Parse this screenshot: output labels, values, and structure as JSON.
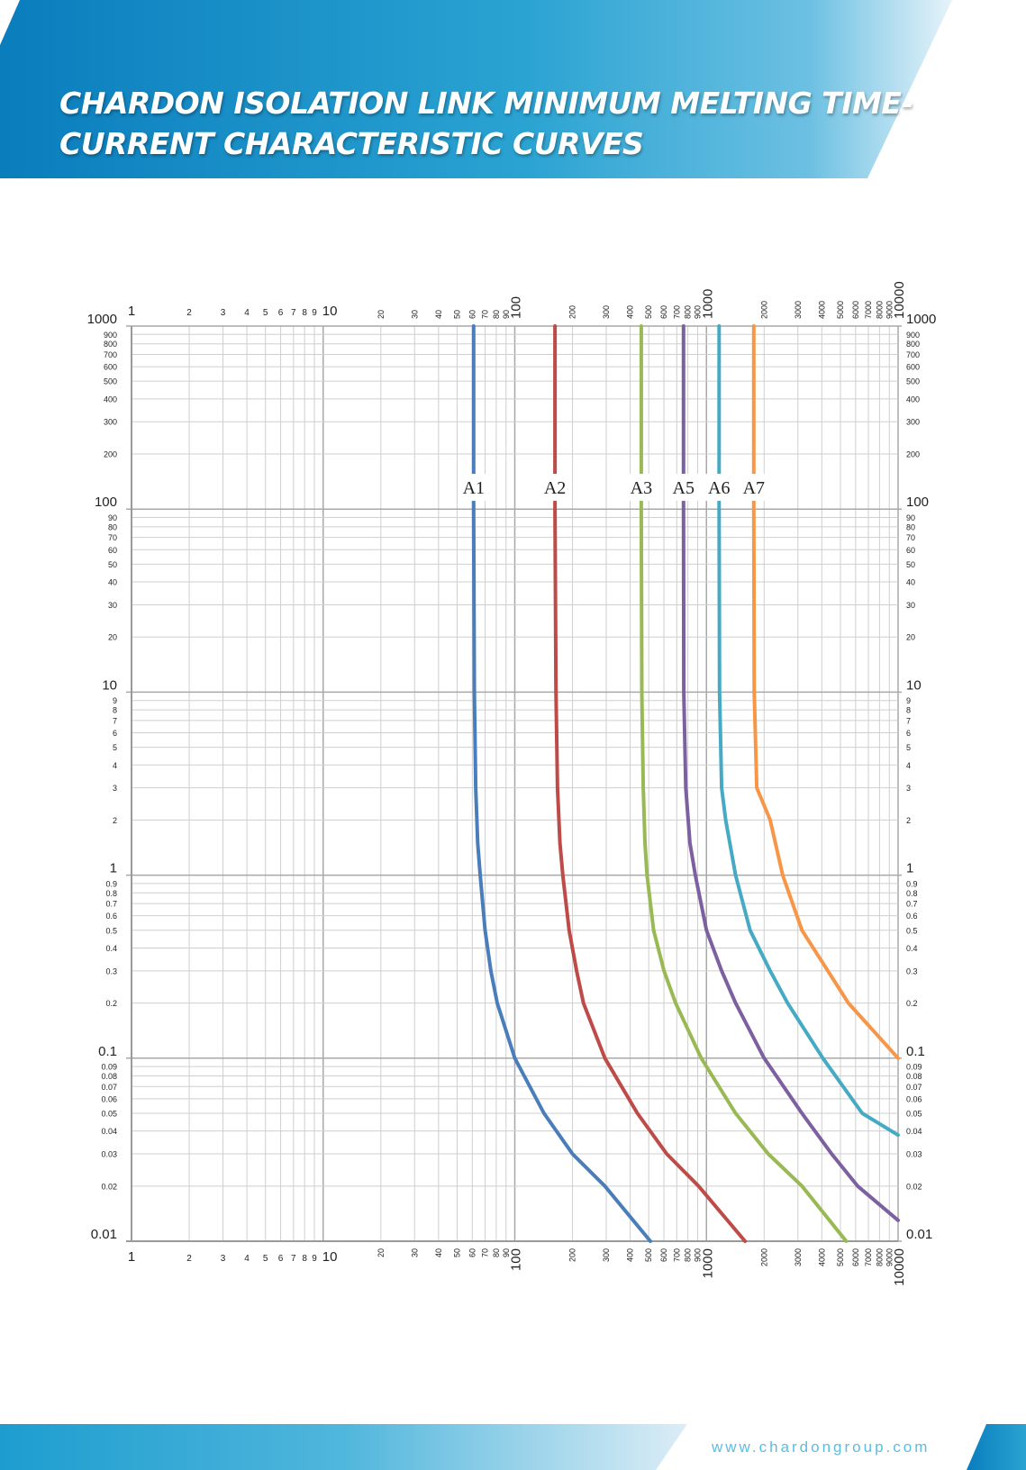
{
  "header": {
    "title_line1": "CHARDON ISOLATION LINK MINIMUM MELTING TIME-",
    "title_line2": "CURRENT CHARACTERISTIC CURVES"
  },
  "footer": {
    "url": "www.chardongroup.com"
  },
  "colors": {
    "header_dark": "#0a7dbd",
    "header_light": "#3fb0da",
    "grid": "#c8c8c8",
    "axis": "#9a9a9a"
  },
  "chart_data": {
    "type": "line",
    "title": "CHARDON ISOLATION LINK MINIMUM MELTING TIME-CURRENT CHARACTERISTIC CURVES",
    "xscale": "log",
    "yscale": "log",
    "xlim": [
      1,
      10000
    ],
    "ylim": [
      0.01,
      1000
    ],
    "grid": true,
    "x_ticks": [
      "1",
      "2",
      "3",
      "4",
      "5",
      "6",
      "7",
      "8",
      "9",
      "10",
      "20",
      "30",
      "40",
      "50",
      "60",
      "70",
      "80",
      "90",
      "100",
      "200",
      "300",
      "400",
      "500",
      "600",
      "700",
      "800",
      "900",
      "1000",
      "2000",
      "3000",
      "4000",
      "5000",
      "6000",
      "7000",
      "8000",
      "9000",
      "10000"
    ],
    "y_ticks": [
      "1000",
      "900",
      "800",
      "700",
      "600",
      "500",
      "400",
      "300",
      "200",
      "100",
      "90",
      "80",
      "70",
      "60",
      "50",
      "40",
      "30",
      "20",
      "10",
      "9",
      "8",
      "7",
      "6",
      "5",
      "4",
      "3",
      "2",
      "1",
      "0.9",
      "0.8",
      "0.7",
      "0.6",
      "0.5",
      "0.4",
      "0.3",
      "0.2",
      "0.1",
      "0.09",
      "0.08",
      "0.07",
      "0.06",
      "0.05",
      "0.04",
      "0.03",
      "0.02",
      "0.01"
    ],
    "series": [
      {
        "name": "A1",
        "color": "#4a7ebb",
        "points": [
          [
            61,
            1000
          ],
          [
            61,
            100
          ],
          [
            61.5,
            10
          ],
          [
            62.5,
            3
          ],
          [
            64,
            1.5
          ],
          [
            66,
            1
          ],
          [
            70,
            0.5
          ],
          [
            75,
            0.3
          ],
          [
            81,
            0.2
          ],
          [
            100,
            0.1
          ],
          [
            142,
            0.05
          ],
          [
            200,
            0.03
          ],
          [
            295,
            0.02
          ],
          [
            510,
            0.01
          ]
        ]
      },
      {
        "name": "A2",
        "color": "#be4b48",
        "points": [
          [
            162,
            1000
          ],
          [
            162,
            100
          ],
          [
            164,
            10
          ],
          [
            167,
            3
          ],
          [
            172,
            1.5
          ],
          [
            178,
            1
          ],
          [
            192,
            0.5
          ],
          [
            210,
            0.3
          ],
          [
            228,
            0.2
          ],
          [
            295,
            0.1
          ],
          [
            436,
            0.05
          ],
          [
            620,
            0.03
          ],
          [
            910,
            0.02
          ],
          [
            1590,
            0.01
          ]
        ]
      },
      {
        "name": "A3",
        "color": "#98b954",
        "points": [
          [
            457,
            1000
          ],
          [
            457,
            100
          ],
          [
            460,
            10
          ],
          [
            468,
            3
          ],
          [
            478,
            1.5
          ],
          [
            490,
            1
          ],
          [
            530,
            0.5
          ],
          [
            600,
            0.3
          ],
          [
            690,
            0.2
          ],
          [
            940,
            0.1
          ],
          [
            1420,
            0.05
          ],
          [
            2100,
            0.03
          ],
          [
            3150,
            0.02
          ],
          [
            5360,
            0.01
          ]
        ]
      },
      {
        "name": "A5",
        "color": "#7d60a0",
        "points": [
          [
            759,
            1000
          ],
          [
            759,
            100
          ],
          [
            762,
            10
          ],
          [
            780,
            3
          ],
          [
            820,
            1.5
          ],
          [
            875,
            1
          ],
          [
            1000,
            0.5
          ],
          [
            1200,
            0.3
          ],
          [
            1420,
            0.2
          ],
          [
            2000,
            0.1
          ],
          [
            3150,
            0.05
          ],
          [
            4500,
            0.03
          ],
          [
            6150,
            0.02
          ],
          [
            10000,
            0.013
          ]
        ]
      },
      {
        "name": "A6",
        "color": "#46aac5",
        "points": [
          [
            1164,
            1000
          ],
          [
            1164,
            100
          ],
          [
            1170,
            10
          ],
          [
            1200,
            3
          ],
          [
            1260,
            2
          ],
          [
            1420,
            1
          ],
          [
            1690,
            0.5
          ],
          [
            2150,
            0.3
          ],
          [
            2650,
            0.2
          ],
          [
            4050,
            0.1
          ],
          [
            6500,
            0.05
          ],
          [
            10000,
            0.038
          ]
        ]
      },
      {
        "name": "A7",
        "color": "#f79646",
        "points": [
          [
            1766,
            1000
          ],
          [
            1766,
            100
          ],
          [
            1775,
            10
          ],
          [
            1830,
            3
          ],
          [
            2150,
            2
          ],
          [
            2500,
            1
          ],
          [
            3150,
            0.5
          ],
          [
            4300,
            0.3
          ],
          [
            5500,
            0.2
          ],
          [
            10000,
            0.1
          ]
        ]
      }
    ]
  }
}
